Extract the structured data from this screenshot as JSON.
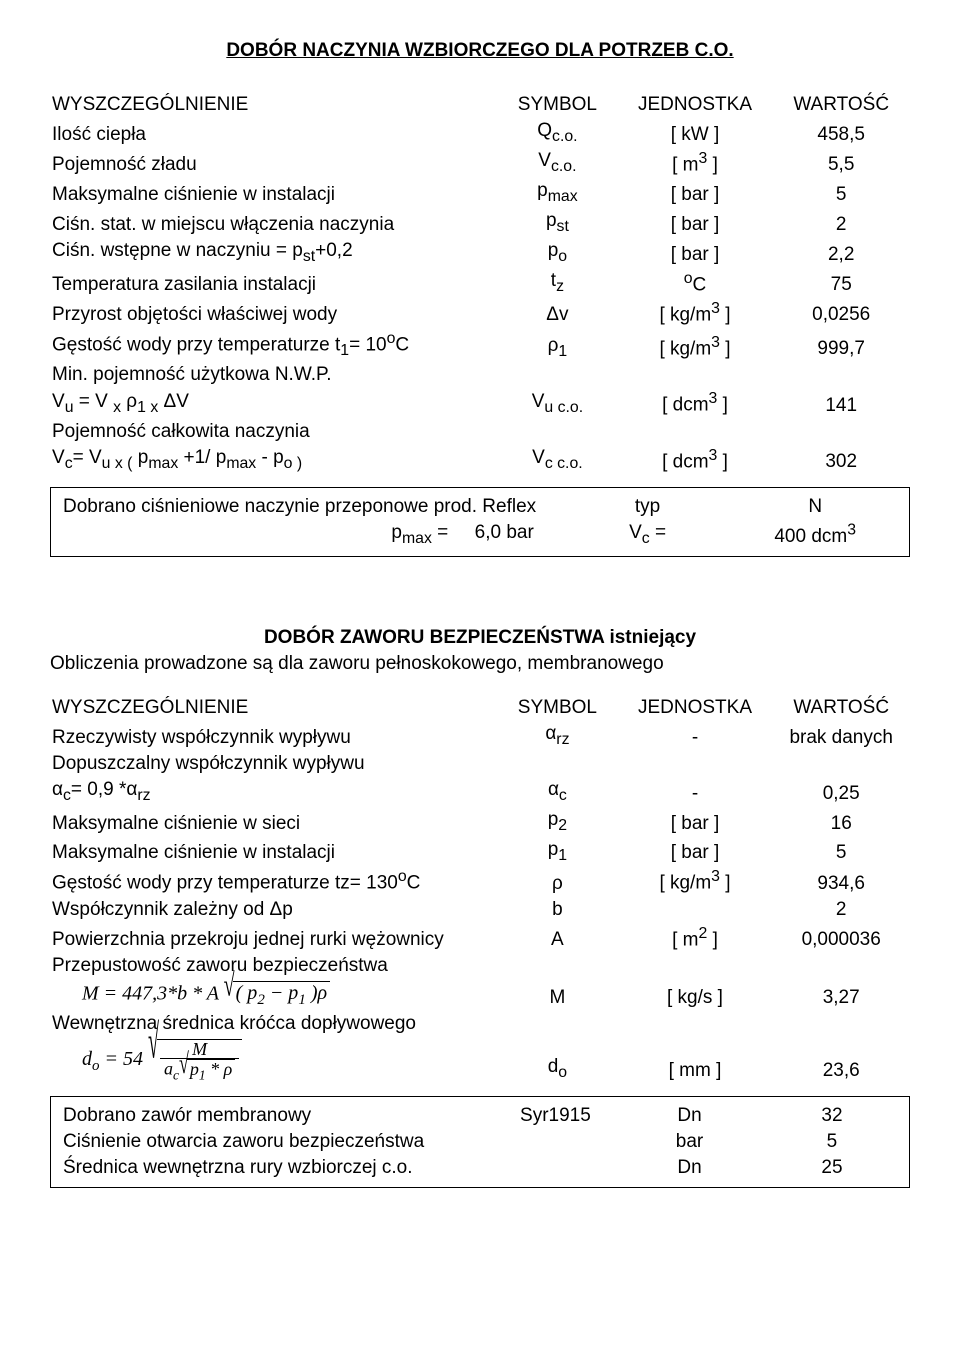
{
  "section1": {
    "title": "DOBÓR  NACZYNIA   WZBIORCZEGO  DLA  POTRZEB  C.O.",
    "headers": {
      "desc": "WYSZCZEGÓLNIENIE",
      "sym": "SYMBOL",
      "unit": "JEDNOSTKA",
      "val": "WARTOŚĆ"
    },
    "rows": [
      {
        "desc": "Ilość ciepła",
        "sym": "Q<sub>c.o.</sub>",
        "unit": "[ kW ]",
        "val": "458,5"
      },
      {
        "desc": "Pojemność zładu",
        "sym": "V<sub>c.o.</sub>",
        "unit": "[ m<sup>3</sup> ]",
        "val": "5,5"
      },
      {
        "desc": "Maksymalne ciśnienie w instalacji",
        "sym": "p<sub>max</sub>",
        "unit": "[ bar ]",
        "val": "5"
      },
      {
        "desc": "Ciśn. stat. w miejscu włączenia naczynia",
        "sym": "p<sub>st</sub>",
        "unit": "[ bar ]",
        "val": "2"
      },
      {
        "desc": "Ciśn. wstępne w naczyniu = p<sub>st</sub>+0,2",
        "sym": "p<sub>o</sub>",
        "unit": "[ bar ]",
        "val": "2,2"
      },
      {
        "desc": "Temperatura zasilania instalacji",
        "sym": "t<sub>z</sub>",
        "unit": "<sup>o</sup>C",
        "val": "75"
      },
      {
        "desc": "Przyrost objętości właściwej wody",
        "sym": "Δv",
        "unit": "[ kg/m<sup>3</sup> ]",
        "val": "0,0256"
      },
      {
        "desc": "Gęstość wody przy temperaturze t<sub>1</sub>= 10<sup>o</sup>C",
        "sym": "ρ<sub>1</sub>",
        "unit": "[ kg/m<sup>3</sup> ]",
        "val": "999,7"
      },
      {
        "desc": "Min. pojemność użytkowa N.W.P.",
        "sym": "",
        "unit": "",
        "val": ""
      },
      {
        "desc": "V<sub>u</sub> = V <sub>x</sub> ρ<sub>1 x</sub> ΔV",
        "sym": "V<sub>u c.o.</sub>",
        "unit": "[ dcm<sup>3</sup> ]",
        "val": "141"
      },
      {
        "desc": "Pojemność całkowita naczynia",
        "sym": "",
        "unit": "",
        "val": ""
      },
      {
        "desc": "V<sub>c</sub>= V<sub>u x (</sub> p<sub>max</sub> +1/ p<sub>max</sub> - p<sub>o )</sub>",
        "sym": "V<sub>c  c.o.</sub>",
        "unit": "[ dcm<sup>3</sup> ]",
        "val": "302"
      }
    ],
    "box": {
      "line1_left": "Dobrano ciśnieniowe naczynie przeponowe prod. Reflex",
      "line1_typ_label": "typ",
      "line1_typ_val": "N",
      "line2_pmax_label": "p<sub>max</sub> =",
      "line2_pmax_val": "6,0 bar",
      "line2_vc_label": "V<sub>c</sub> =",
      "line2_vc_val": "400 dcm<sup>3</sup>"
    }
  },
  "section2": {
    "title": "DOBÓR  ZAWORU  BEZPIECZEŃSTWA istniejący",
    "intro": "Obliczenia prowadzone są dla zaworu pełnoskokowego, membranowego",
    "headers": {
      "desc": "WYSZCZEGÓLNIENIE",
      "sym": "SYMBOL",
      "unit": "JEDNOSTKA",
      "val": "WARTOŚĆ"
    },
    "rows": [
      {
        "desc": "Rzeczywisty współczynnik wypływu",
        "sym": "α<sub>rz</sub>",
        "unit": "-",
        "val": "brak danych"
      },
      {
        "desc": "Dopuszczalny współczynnik wypływu",
        "sym": "",
        "unit": "",
        "val": ""
      },
      {
        "desc": "α<sub>c</sub>= 0,9 *α<sub>rz</sub>",
        "sym": "α<sub>c</sub>",
        "unit": "-",
        "val": "0,25"
      },
      {
        "desc": "Maksymalne ciśnienie w sieci",
        "sym": "p<sub>2</sub>",
        "unit": "[ bar ]",
        "val": "16"
      },
      {
        "desc": "Maksymalne ciśnienie w instalacji",
        "sym": "p<sub>1</sub>",
        "unit": "[ bar ]",
        "val": "5"
      },
      {
        "desc": "Gęstość wody przy temperaturze tz= 130<sup>o</sup>C",
        "sym": "ρ",
        "unit": "[ kg/m<sup>3</sup> ]",
        "val": "934,6"
      },
      {
        "desc": "Współczynnik zależny od Δp",
        "sym": "b",
        "unit": "",
        "val": "2"
      },
      {
        "desc": "Powierzchnia przekroju jednej rurki wężownicy",
        "sym": "A",
        "unit": "[ m<sup>2</sup> ]",
        "val": "0,000036"
      },
      {
        "desc": "Przepustowość zaworu bezpieczeństwa",
        "sym": "",
        "unit": "",
        "val": ""
      }
    ],
    "eq_M": {
      "sym": "M",
      "unit": "[ kg/s ]",
      "val": "3,27"
    },
    "row_wewn": "Wewnętrzna średnica króćca dopływowego",
    "eq_do": {
      "sym": "d<sub>o</sub>",
      "unit": "[ mm ]",
      "val": "23,6"
    },
    "box": {
      "r1": {
        "desc": "Dobrano zawór membranowy",
        "sym": "Syr1915",
        "unit": "Dn",
        "val": "32"
      },
      "r2": {
        "desc": "Ciśnienie otwarcia  zaworu bezpieczeństwa",
        "sym": "",
        "unit": "bar",
        "val": "5"
      },
      "r3": {
        "desc": "Średnica wewnętrzna rury wzbiorczej  c.o.",
        "sym": "",
        "unit": "Dn",
        "val": "25"
      }
    }
  }
}
